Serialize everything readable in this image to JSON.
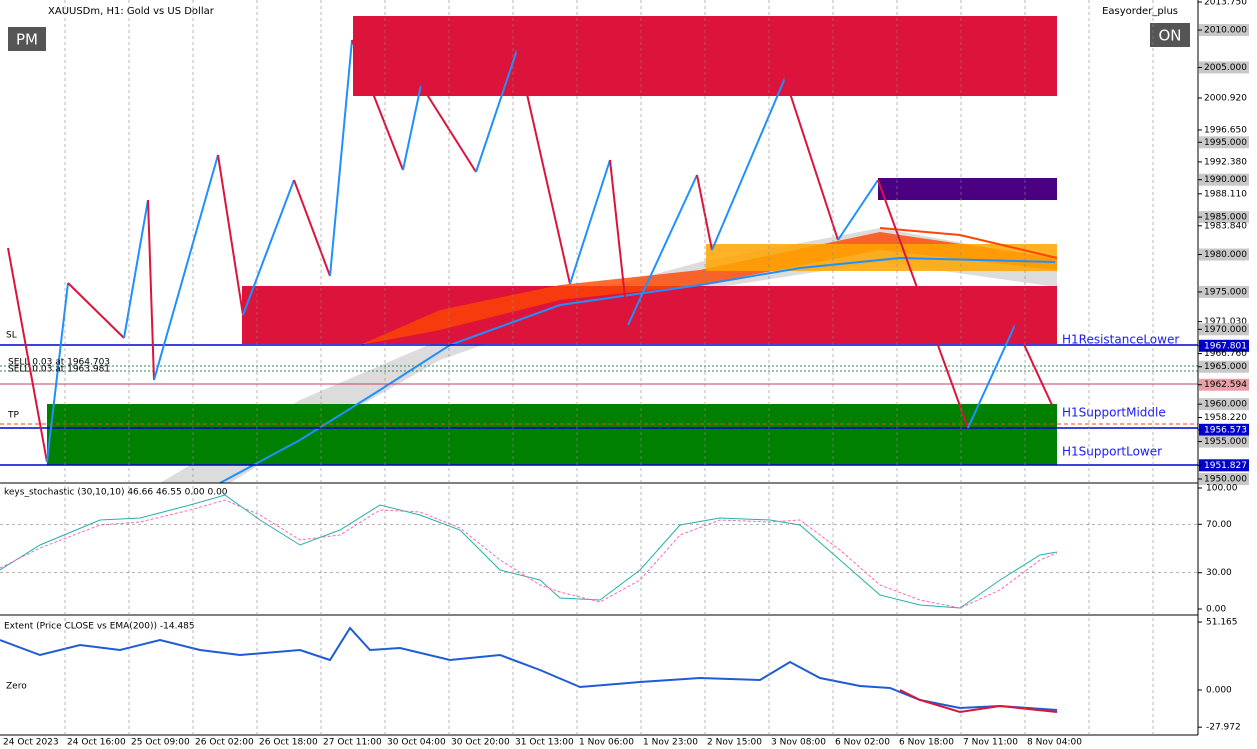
{
  "header": {
    "symbol": "XAUUSDm, H1:  Gold vs US Dollar",
    "expert": "Easyorder_plus",
    "left_button": "PM",
    "right_button": "ON"
  },
  "price_axis": [
    {
      "value": 2013.75,
      "label": "2013.750"
    },
    {
      "value": 2010,
      "label": "2010.000"
    },
    {
      "value": 2005,
      "label": "2005.000"
    },
    {
      "value": 2000.92,
      "label": "2000.920"
    },
    {
      "value": 1996.65,
      "label": "1996.650"
    },
    {
      "value": 1995,
      "label": "1995.000"
    },
    {
      "value": 1992.38,
      "label": "1992.380"
    },
    {
      "value": 1990,
      "label": "1990.000"
    },
    {
      "value": 1988.11,
      "label": "1988.110"
    },
    {
      "value": 1985,
      "label": "1985.000"
    },
    {
      "value": 1983.84,
      "label": "1983.840"
    },
    {
      "value": 1980,
      "label": "1980.000"
    },
    {
      "value": 1975,
      "label": "1975.000"
    },
    {
      "value": 1971.03,
      "label": "1971.030"
    },
    {
      "value": 1970,
      "label": "1970.000"
    },
    {
      "value": 1967.801,
      "label": "1967.801"
    },
    {
      "value": 1966.76,
      "label": "1966.760"
    },
    {
      "value": 1965,
      "label": "1965.000"
    },
    {
      "value": 1962.594,
      "label": "1962.594"
    },
    {
      "value": 1960,
      "label": "1960.000"
    },
    {
      "value": 1958.22,
      "label": "1958.220"
    },
    {
      "value": 1956.573,
      "label": "1956.573"
    },
    {
      "value": 1955,
      "label": "1955.000"
    },
    {
      "value": 1951.827,
      "label": "1951.827"
    },
    {
      "value": 1950,
      "label": "1950.000"
    }
  ],
  "zones": {
    "resistance_lower": "H1ResistanceLower",
    "support_middle": "H1SupportMiddle",
    "support_lower": "H1SupportLower"
  },
  "orders": {
    "sl": "SL",
    "sell_1": "SELL 0.03 at 1964.703",
    "sell_2": "SELL 0.03 at 1963.981",
    "tp": "TP"
  },
  "stochastic": {
    "title": "keys_stochastic (30,10,10) 46.66 46.55 0.00 0.00",
    "axis": [
      {
        "value": 100,
        "label": "100.00"
      },
      {
        "value": 70,
        "label": "70.00"
      },
      {
        "value": 30,
        "label": "30.00"
      },
      {
        "value": 0,
        "label": "0.00"
      }
    ]
  },
  "extent": {
    "title": "Extent (Price CLOSE vs EMA(200)) -14.485",
    "zero_label": "Zero",
    "axis": [
      {
        "value": 51.165,
        "label": "51.165"
      },
      {
        "value": 0,
        "label": "0.000"
      },
      {
        "value": -27.972,
        "label": "-27.972"
      }
    ]
  },
  "time_axis": [
    "24 Oct 2023",
    "24 Oct 16:00",
    "25 Oct 09:00",
    "26 Oct 02:00",
    "26 Oct 18:00",
    "27 Oct 11:00",
    "30 Oct 04:00",
    "30 Oct 20:00",
    "31 Oct 13:00",
    "1 Nov 06:00",
    "1 Nov 23:00",
    "2 Nov 15:00",
    "3 Nov 08:00",
    "6 Nov 02:00",
    "6 Nov 18:00",
    "7 Nov 11:00",
    "8 Nov 04:00"
  ]
}
